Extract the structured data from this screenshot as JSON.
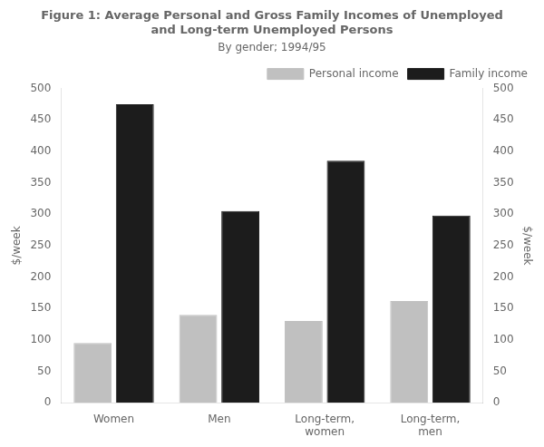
{
  "chart_data": {
    "type": "bar",
    "title": "Figure 1: Average Personal and Gross Family Incomes of Unemployed\nand Long-term Unemployed Persons",
    "subtitle": "By gender; 1994/95",
    "categories": [
      "Women",
      "Men",
      "Long-term,\nwomen",
      "Long-term,\nmen"
    ],
    "series": [
      {
        "name": "Personal income",
        "color": "#c0c0c0",
        "values": [
          95,
          140,
          130,
          162
        ]
      },
      {
        "name": "Family income",
        "color": "#1c1c1c",
        "values": [
          475,
          305,
          385,
          298
        ]
      }
    ],
    "ylabel": "$/week",
    "y2label": "$/week",
    "ylim": [
      0,
      500
    ],
    "yticks": [
      0,
      50,
      100,
      150,
      200,
      250,
      300,
      350,
      400,
      450,
      500
    ],
    "y2lim": [
      0,
      500
    ],
    "y2ticks": [
      0,
      50,
      100,
      150,
      200,
      250,
      300,
      350,
      400,
      450,
      500
    ],
    "grid": false,
    "legend": "upper right"
  }
}
